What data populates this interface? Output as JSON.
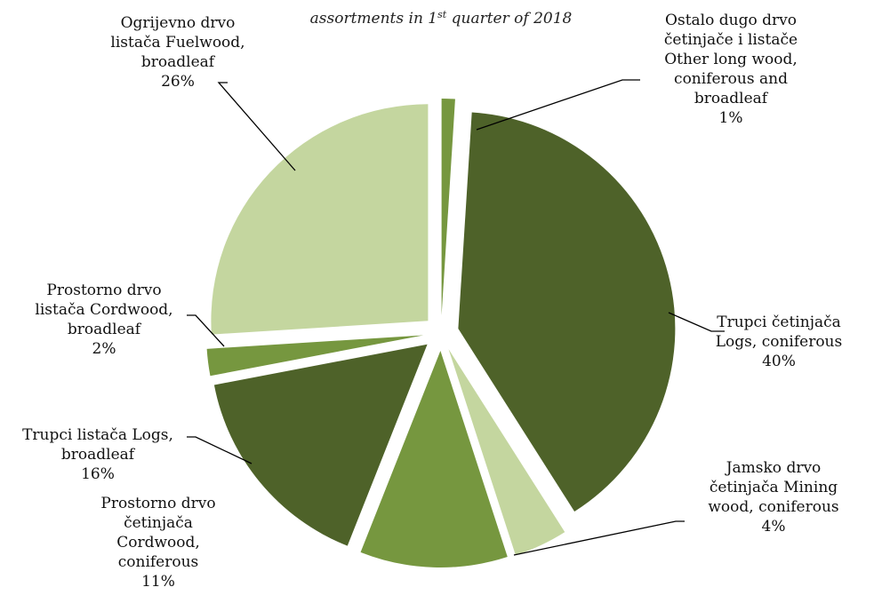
{
  "chart_data": {
    "type": "pie",
    "title_lines": [
      "assortments in 1",
      "st",
      " quarter of 2018"
    ],
    "slices": [
      {
        "value": 1,
        "color": "#76973f",
        "label_lines": [
          "Ostalo dugo drvo",
          "četinjače i listače",
          "Other long wood,",
          "coniferous and",
          "broadleaf",
          "1%"
        ]
      },
      {
        "value": 40,
        "color": "#4e6229",
        "label_lines": [
          "Trupci četinjača",
          "Logs, coniferous",
          "40%"
        ]
      },
      {
        "value": 4,
        "color": "#c4d69f",
        "label_lines": [
          "Jamsko drvo",
          "četinjača Mining",
          "wood, coniferous",
          "4%"
        ]
      },
      {
        "value": 11,
        "color": "#76973f",
        "label_lines": [
          "Prostorno drvo",
          "četinjača",
          "Cordwood,",
          "coniferous",
          "11%"
        ]
      },
      {
        "value": 16,
        "color": "#4e6229",
        "label_lines": [
          "Trupci listača Logs,",
          "broadleaf",
          "16%"
        ]
      },
      {
        "value": 2,
        "color": "#76973f",
        "label_lines": [
          "Prostorno drvo",
          "listača Cordwood,",
          "broadleaf",
          "2%"
        ]
      },
      {
        "value": 26,
        "color": "#c4d69f",
        "label_lines": [
          "Ogrijevno drvo",
          "listača  Fuelwood,",
          "broadleaf",
          "26%"
        ]
      }
    ]
  }
}
